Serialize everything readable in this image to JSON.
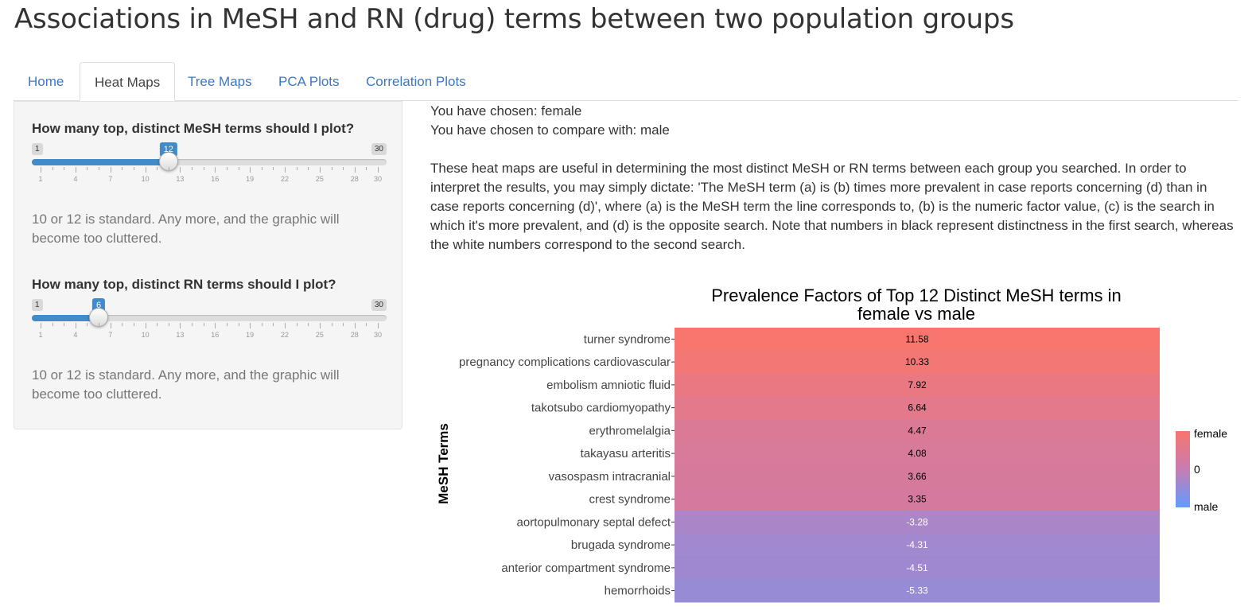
{
  "page": {
    "title": "Associations in MeSH and RN (drug) terms between two population groups"
  },
  "tabs": [
    {
      "label": "Home",
      "active": false
    },
    {
      "label": "Heat Maps",
      "active": true
    },
    {
      "label": "Tree Maps",
      "active": false
    },
    {
      "label": "PCA Plots",
      "active": false
    },
    {
      "label": "Correlation Plots",
      "active": false
    }
  ],
  "sidebar": {
    "mesh_slider": {
      "label": "How many top, distinct MeSH terms should I plot?",
      "min": 1,
      "max": 30,
      "value": 12,
      "min_label": "1",
      "max_label": "30",
      "value_label": "12",
      "ticks": [
        "1",
        "4",
        "7",
        "10",
        "13",
        "16",
        "19",
        "22",
        "25",
        "28",
        "30"
      ],
      "help": "10 or 12 is standard. Any more, and the graphic will become too cluttered."
    },
    "rn_slider": {
      "label": "How many top, distinct RN terms should I plot?",
      "min": 1,
      "max": 30,
      "value": 6,
      "min_label": "1",
      "max_label": "30",
      "value_label": "6",
      "ticks": [
        "1",
        "4",
        "7",
        "10",
        "13",
        "16",
        "19",
        "22",
        "25",
        "28",
        "30"
      ],
      "help": "10 or 12 is standard. Any more, and the graphic will become too cluttered."
    }
  },
  "main": {
    "chosen": "You have chosen: female",
    "compare": "You have chosen to compare with: male",
    "description": "These heat maps are useful in determining the most distinct MeSH or RN terms between each group you searched. In order to interpret the results, you may simply dictate: 'The MeSH term (a) is (b) times more prevalent in case reports concerning (d) than in case reports concerning (d)', where (a) is the MeSH term the line corresponds to, (b) is the numeric factor value, (c) is the search in which it's more prevalent, and (d) is the opposite search. Note that numbers in black represent distinctness in the first search, whereas the white numbers correspond to the second search."
  },
  "chart_data": {
    "type": "heatmap",
    "title_line1": "Prevalence Factors of Top 12 Distinct MeSH terms in",
    "title_line2": "female vs male",
    "ylabel": "MeSH Terms",
    "rows": [
      "turner syndrome",
      "pregnancy complications cardiovascular",
      "embolism amniotic fluid",
      "takotsubo cardiomyopathy",
      "erythromelalgia",
      "takayasu arteritis",
      "vasospasm intracranial",
      "crest syndrome",
      "aortopulmonary septal defect",
      "brugada syndrome",
      "anterior compartment syndrome",
      "hemorrhoids"
    ],
    "values": [
      11.58,
      10.33,
      7.92,
      6.64,
      4.47,
      4.08,
      3.66,
      3.35,
      -3.28,
      -4.31,
      -4.51,
      -5.33
    ],
    "labels": [
      "11.58",
      "10.33",
      "7.92",
      "6.64",
      "4.47",
      "4.08",
      "3.66",
      "3.35",
      "-3.28",
      "-4.31",
      "-4.51",
      "-5.33"
    ],
    "legend": {
      "labels": [
        "female",
        "0",
        "male"
      ],
      "high_color": "#f8766d",
      "mid_color": "#c77cb2",
      "low_color": "#619cff",
      "placement": "right"
    }
  }
}
